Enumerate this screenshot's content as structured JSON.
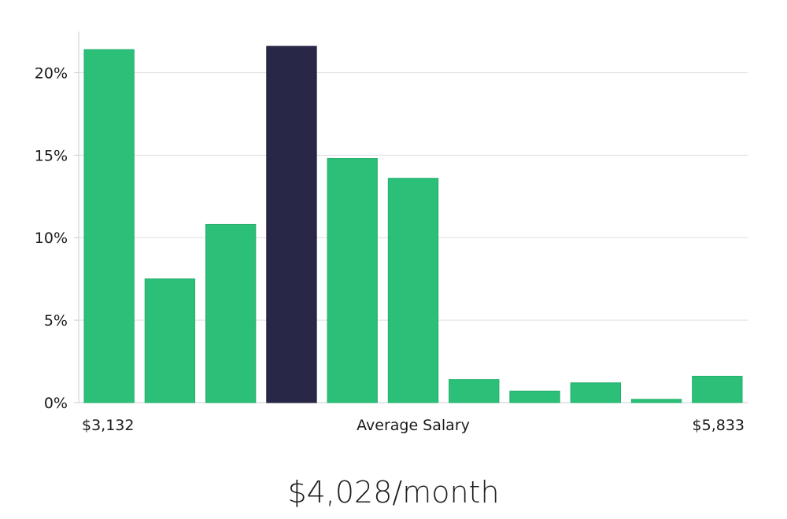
{
  "chart_data": {
    "type": "bar",
    "xlabel": "Average Salary",
    "x_min_label": "$3,132",
    "x_max_label": "$5,833",
    "ylim": [
      0,
      22.5
    ],
    "yticks": [
      0,
      5,
      10,
      15,
      20
    ],
    "ytick_labels": [
      "0%",
      "5%",
      "10%",
      "15%",
      "20%"
    ],
    "values": [
      21.4,
      7.5,
      10.8,
      21.6,
      14.8,
      13.6,
      1.4,
      0.7,
      1.2,
      0.2,
      1.6
    ],
    "highlight_index": 3,
    "grid": true,
    "colors": {
      "bar": "#2bbf78",
      "highlight": "#292747",
      "grid": "#dddddd",
      "axis": "#cccccc"
    }
  },
  "salary_readout": "$4,028/month"
}
